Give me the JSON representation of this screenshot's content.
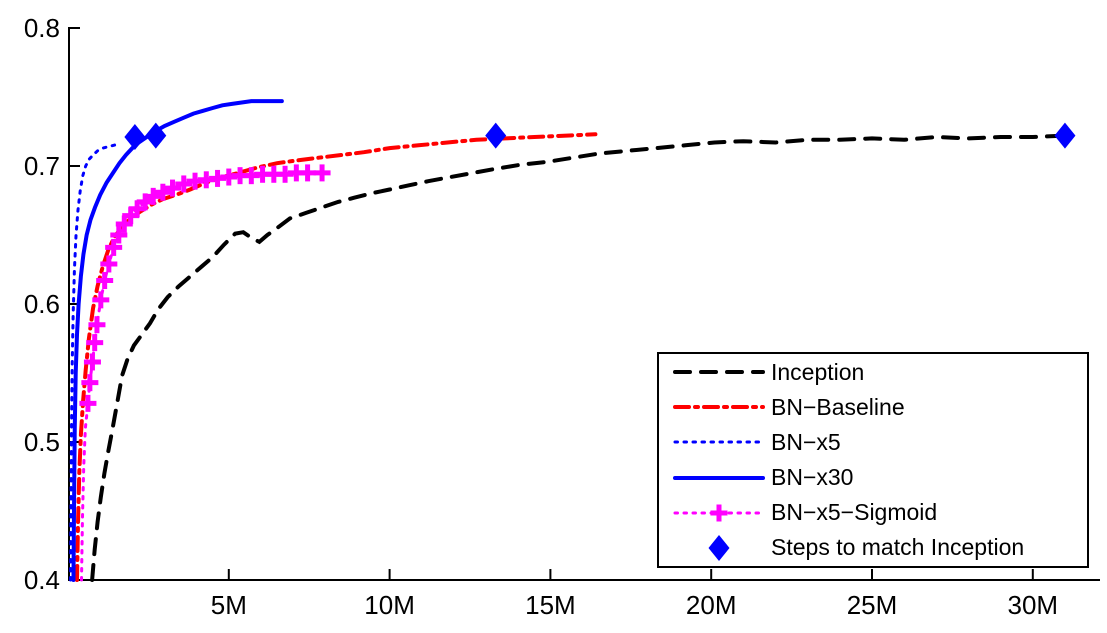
{
  "figure": {
    "background": "#ffffff",
    "axis_color": "#000000",
    "accent_blue": "#0000ff",
    "accent_red": "#ff0000",
    "accent_magenta": "#ff00ff"
  },
  "chart_data": {
    "type": "line",
    "title": "",
    "xlabel": "",
    "ylabel": "",
    "grid": false,
    "legend_position": "bottom-right",
    "xlim": [
      0,
      32
    ],
    "ylim": [
      0.4,
      0.8
    ],
    "x_ticks": [
      {
        "value": 5,
        "label": "5M"
      },
      {
        "value": 10,
        "label": "10M"
      },
      {
        "value": 15,
        "label": "15M"
      },
      {
        "value": 20,
        "label": "20M"
      },
      {
        "value": 25,
        "label": "25M"
      },
      {
        "value": 30,
        "label": "30M"
      }
    ],
    "y_ticks": [
      {
        "value": 0.4,
        "label": "0.4"
      },
      {
        "value": 0.5,
        "label": "0.5"
      },
      {
        "value": 0.6,
        "label": "0.6"
      },
      {
        "value": 0.7,
        "label": "0.7"
      },
      {
        "value": 0.8,
        "label": "0.8"
      }
    ],
    "series": [
      {
        "name": "Inception",
        "slug": "inception",
        "color": "#000000",
        "style": "dashed",
        "dash": "15 11",
        "width": 4,
        "marker": "none",
        "points": [
          [
            0.75,
            0.4
          ],
          [
            0.83,
            0.422
          ],
          [
            0.92,
            0.442
          ],
          [
            1.02,
            0.46
          ],
          [
            1.13,
            0.477
          ],
          [
            1.25,
            0.493
          ],
          [
            1.38,
            0.509
          ],
          [
            1.52,
            0.527
          ],
          [
            1.68,
            0.548
          ],
          [
            1.85,
            0.56
          ],
          [
            2.05,
            0.57
          ],
          [
            2.3,
            0.578
          ],
          [
            2.55,
            0.586
          ],
          [
            2.8,
            0.596
          ],
          [
            3.1,
            0.605
          ],
          [
            3.45,
            0.613
          ],
          [
            3.8,
            0.62
          ],
          [
            4.15,
            0.627
          ],
          [
            4.5,
            0.634
          ],
          [
            4.85,
            0.643
          ],
          [
            5.2,
            0.651
          ],
          [
            5.45,
            0.652
          ],
          [
            5.7,
            0.648
          ],
          [
            5.95,
            0.645
          ],
          [
            6.2,
            0.65
          ],
          [
            6.5,
            0.655
          ],
          [
            6.9,
            0.662
          ],
          [
            7.4,
            0.666
          ],
          [
            7.9,
            0.67
          ],
          [
            8.4,
            0.674
          ],
          [
            8.9,
            0.677
          ],
          [
            9.4,
            0.68
          ],
          [
            10.0,
            0.683
          ],
          [
            10.6,
            0.686
          ],
          [
            11.2,
            0.689
          ],
          [
            11.9,
            0.692
          ],
          [
            12.6,
            0.695
          ],
          [
            13.3,
            0.698
          ],
          [
            14.1,
            0.701
          ],
          [
            14.9,
            0.703
          ],
          [
            15.7,
            0.706
          ],
          [
            16.5,
            0.709
          ],
          [
            17.4,
            0.711
          ],
          [
            18.3,
            0.713
          ],
          [
            19.2,
            0.715
          ],
          [
            20.1,
            0.717
          ],
          [
            21.0,
            0.718
          ],
          [
            22.0,
            0.717
          ],
          [
            23.0,
            0.719
          ],
          [
            24.0,
            0.719
          ],
          [
            25.0,
            0.72
          ],
          [
            26.0,
            0.719
          ],
          [
            27.0,
            0.721
          ],
          [
            28.0,
            0.72
          ],
          [
            29.0,
            0.721
          ],
          [
            30.0,
            0.721
          ],
          [
            31.0,
            0.722
          ]
        ]
      },
      {
        "name": "BN−Baseline",
        "slug": "bn-baseline",
        "color": "#ff0000",
        "style": "dash-dot",
        "dash": "14 6 3 6",
        "width": 4,
        "marker": "none",
        "points": [
          [
            0.28,
            0.4
          ],
          [
            0.31,
            0.44
          ],
          [
            0.35,
            0.477
          ],
          [
            0.4,
            0.505
          ],
          [
            0.47,
            0.53
          ],
          [
            0.55,
            0.552
          ],
          [
            0.65,
            0.575
          ],
          [
            0.78,
            0.597
          ],
          [
            0.92,
            0.613
          ],
          [
            1.08,
            0.627
          ],
          [
            1.25,
            0.639
          ],
          [
            1.45,
            0.649
          ],
          [
            1.7,
            0.656
          ],
          [
            1.95,
            0.662
          ],
          [
            2.25,
            0.667
          ],
          [
            2.6,
            0.672
          ],
          [
            2.95,
            0.676
          ],
          [
            3.35,
            0.679
          ],
          [
            3.8,
            0.683
          ],
          [
            4.3,
            0.688
          ],
          [
            4.8,
            0.692
          ],
          [
            5.3,
            0.695
          ],
          [
            5.9,
            0.699
          ],
          [
            6.5,
            0.702
          ],
          [
            7.1,
            0.704
          ],
          [
            7.8,
            0.706
          ],
          [
            8.5,
            0.708
          ],
          [
            9.2,
            0.71
          ],
          [
            10.0,
            0.713
          ],
          [
            10.9,
            0.715
          ],
          [
            11.8,
            0.717
          ],
          [
            12.7,
            0.719
          ],
          [
            13.6,
            0.72
          ],
          [
            14.5,
            0.721
          ],
          [
            15.5,
            0.722
          ],
          [
            16.4,
            0.723
          ]
        ]
      },
      {
        "name": "BN−x5",
        "slug": "bn-x5",
        "color": "#0000ff",
        "style": "dotted",
        "dash": "2.5 6.5",
        "width": 3,
        "marker": "none",
        "points": [
          [
            0.08,
            0.4
          ],
          [
            0.095,
            0.46
          ],
          [
            0.11,
            0.51
          ],
          [
            0.13,
            0.555
          ],
          [
            0.16,
            0.592
          ],
          [
            0.2,
            0.625
          ],
          [
            0.25,
            0.65
          ],
          [
            0.31,
            0.668
          ],
          [
            0.38,
            0.682
          ],
          [
            0.46,
            0.693
          ],
          [
            0.55,
            0.7
          ],
          [
            0.66,
            0.705
          ],
          [
            0.78,
            0.708
          ],
          [
            0.92,
            0.711
          ],
          [
            1.08,
            0.713
          ],
          [
            1.25,
            0.714
          ],
          [
            1.42,
            0.715
          ],
          [
            1.6,
            0.716
          ]
        ]
      },
      {
        "name": "BN−x30",
        "slug": "bn-x30",
        "color": "#0000ff",
        "style": "solid",
        "dash": "",
        "width": 4,
        "marker": "none",
        "points": [
          [
            0.17,
            0.4
          ],
          [
            0.19,
            0.46
          ],
          [
            0.21,
            0.51
          ],
          [
            0.24,
            0.55
          ],
          [
            0.28,
            0.578
          ],
          [
            0.33,
            0.6
          ],
          [
            0.4,
            0.62
          ],
          [
            0.48,
            0.636
          ],
          [
            0.58,
            0.65
          ],
          [
            0.7,
            0.661
          ],
          [
            0.84,
            0.67
          ],
          [
            1.0,
            0.679
          ],
          [
            1.2,
            0.688
          ],
          [
            1.4,
            0.695
          ],
          [
            1.6,
            0.702
          ],
          [
            1.8,
            0.708
          ],
          [
            2.0,
            0.713
          ],
          [
            2.2,
            0.717
          ],
          [
            2.45,
            0.721
          ],
          [
            2.7,
            0.725
          ],
          [
            3.0,
            0.729
          ],
          [
            3.3,
            0.732
          ],
          [
            3.6,
            0.735
          ],
          [
            3.9,
            0.738
          ],
          [
            4.2,
            0.74
          ],
          [
            4.5,
            0.742
          ],
          [
            4.8,
            0.744
          ],
          [
            5.1,
            0.745
          ],
          [
            5.4,
            0.746
          ],
          [
            5.7,
            0.747
          ],
          [
            6.0,
            0.747
          ],
          [
            6.3,
            0.747
          ],
          [
            6.65,
            0.747
          ]
        ]
      },
      {
        "name": "BN−x5−Sigmoid",
        "slug": "bn-x5-sigmoid",
        "color": "#ff00ff",
        "style": "dotted",
        "dash": "2.5 6.5",
        "width": 3,
        "marker": "plus",
        "marker_from": 4,
        "points": [
          [
            0.42,
            0.4
          ],
          [
            0.45,
            0.445
          ],
          [
            0.49,
            0.483
          ],
          [
            0.54,
            0.51
          ],
          [
            0.62,
            0.528
          ],
          [
            0.68,
            0.543
          ],
          [
            0.76,
            0.558
          ],
          [
            0.83,
            0.572
          ],
          [
            0.9,
            0.585
          ],
          [
            1.02,
            0.603
          ],
          [
            1.14,
            0.617
          ],
          [
            1.27,
            0.629
          ],
          [
            1.42,
            0.641
          ],
          [
            1.58,
            0.65
          ],
          [
            1.75,
            0.658
          ],
          [
            1.95,
            0.664
          ],
          [
            2.15,
            0.669
          ],
          [
            2.4,
            0.674
          ],
          [
            2.65,
            0.678
          ],
          [
            2.95,
            0.681
          ],
          [
            3.25,
            0.684
          ],
          [
            3.6,
            0.687
          ],
          [
            3.95,
            0.689
          ],
          [
            4.3,
            0.69
          ],
          [
            4.65,
            0.691
          ],
          [
            5.0,
            0.692
          ],
          [
            5.35,
            0.693
          ],
          [
            5.7,
            0.693
          ],
          [
            6.05,
            0.694
          ],
          [
            6.4,
            0.694
          ],
          [
            6.75,
            0.694
          ],
          [
            7.1,
            0.695
          ],
          [
            7.45,
            0.695
          ],
          [
            7.9,
            0.695
          ]
        ]
      },
      {
        "name": "Steps to match Inception",
        "slug": "steps-to-match-inception",
        "color": "#0000ff",
        "style": "none",
        "dash": "",
        "width": 0,
        "marker": "diamond",
        "points": [
          [
            2.08,
            0.721
          ],
          [
            2.73,
            0.722
          ],
          [
            13.3,
            0.722
          ],
          [
            31.0,
            0.722
          ]
        ]
      }
    ]
  }
}
